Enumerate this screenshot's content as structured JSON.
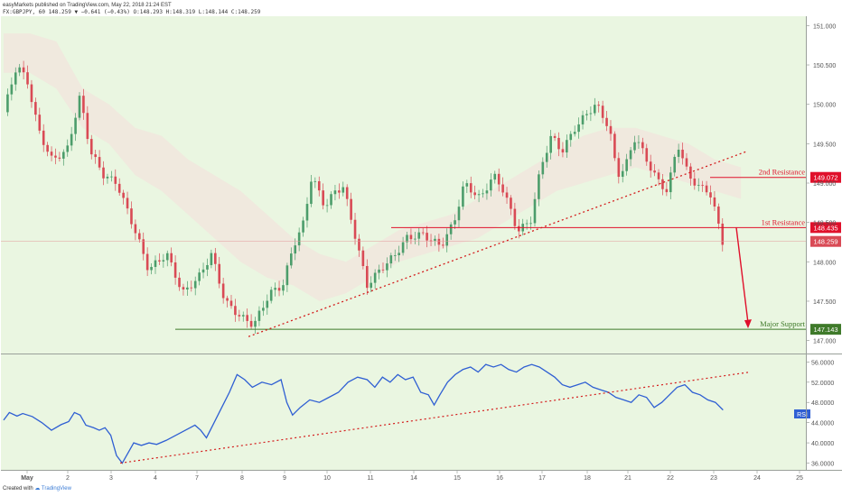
{
  "header": {
    "publisher_line": "easyMarkets published on TradingView.com, May 22, 2018 21:24 EST",
    "publisher_name": "easyMarkets",
    "symbol_line": "FX:GBPJPY, 60  148.259  ▼ −0.641 (−0.43%)  O:148.293  H:148.319  L:148.144  C:148.259"
  },
  "footer": {
    "created_with": "Created with",
    "brand": "TradingView"
  },
  "colors": {
    "background": "#eaf6e1",
    "up_candle": "#4c9d6b",
    "down_candle": "#d94a55",
    "resistance_line": "#e0102b",
    "support_line": "#3f7a2a",
    "rsi_line": "#2f5fd3",
    "trendline": "#d41d1d",
    "cloud": "#f2e4dc"
  },
  "chart_data": [
    {
      "type": "candlestick",
      "symbol": "FX:GBPJPY",
      "interval": "60",
      "last_price": 148.259,
      "x_tick_labels": [
        "May",
        "2",
        "3",
        "4",
        "7",
        "8",
        "9",
        "10",
        "11",
        "14",
        "15",
        "16",
        "17",
        "18",
        "21",
        "22",
        "23",
        "24",
        "25"
      ],
      "y_tick_labels": [
        "151.000",
        "150.500",
        "150.000",
        "149.500",
        "149.000",
        "148.500",
        "148.000",
        "147.500",
        "147.000"
      ],
      "ylim": [
        146.95,
        151.05
      ],
      "close_path": [
        [
          0,
          149.9
        ],
        [
          0.5,
          150.5
        ],
        [
          0.9,
          150.3
        ],
        [
          1.3,
          149.7
        ],
        [
          1.8,
          149.3
        ],
        [
          2.4,
          149.4
        ],
        [
          2.9,
          150.1
        ],
        [
          3.3,
          149.4
        ],
        [
          3.8,
          149.1
        ],
        [
          4.3,
          149.0
        ],
        [
          5.1,
          148.3
        ],
        [
          5.5,
          147.9
        ],
        [
          6.2,
          148.1
        ],
        [
          6.8,
          147.6
        ],
        [
          7.4,
          147.8
        ],
        [
          7.9,
          148.1
        ],
        [
          8.4,
          147.5
        ],
        [
          9.0,
          147.3
        ],
        [
          9.5,
          147.2
        ],
        [
          10.1,
          147.6
        ],
        [
          10.6,
          147.7
        ],
        [
          11.0,
          148.2
        ],
        [
          11.4,
          148.5
        ],
        [
          11.7,
          149.1
        ],
        [
          12.2,
          148.7
        ],
        [
          12.6,
          148.9
        ],
        [
          12.9,
          148.95
        ],
        [
          13.3,
          148.4
        ],
        [
          13.8,
          147.7
        ],
        [
          14.3,
          147.9
        ],
        [
          14.9,
          148.1
        ],
        [
          15.3,
          148.3
        ],
        [
          15.9,
          148.35
        ],
        [
          16.6,
          148.2
        ],
        [
          17.1,
          148.5
        ],
        [
          17.5,
          149.0
        ],
        [
          18.1,
          148.8
        ],
        [
          18.6,
          149.1
        ],
        [
          19.0,
          148.9
        ],
        [
          19.5,
          148.4
        ],
        [
          20.0,
          148.5
        ],
        [
          20.4,
          149.2
        ],
        [
          20.8,
          149.6
        ],
        [
          21.2,
          149.4
        ],
        [
          21.7,
          149.7
        ],
        [
          22.2,
          149.9
        ],
        [
          22.5,
          150.0
        ],
        [
          23.0,
          149.7
        ],
        [
          23.3,
          149.1
        ],
        [
          23.6,
          149.2
        ],
        [
          24.0,
          149.6
        ],
        [
          24.4,
          149.3
        ],
        [
          24.9,
          149.0
        ],
        [
          25.2,
          148.9
        ],
        [
          25.6,
          149.5
        ],
        [
          26.0,
          149.1
        ],
        [
          26.4,
          148.95
        ],
        [
          26.8,
          148.9
        ],
        [
          27.05,
          148.6
        ],
        [
          27.3,
          148.259
        ]
      ],
      "cloud_upper": [
        [
          0,
          150.9
        ],
        [
          1,
          150.9
        ],
        [
          2,
          150.8
        ],
        [
          3,
          150.2
        ],
        [
          4,
          150.0
        ],
        [
          5,
          149.7
        ],
        [
          6,
          149.6
        ],
        [
          7,
          149.3
        ],
        [
          8,
          149.1
        ],
        [
          9,
          148.9
        ],
        [
          10,
          148.6
        ],
        [
          11,
          148.3
        ],
        [
          12,
          148.1
        ],
        [
          13,
          148.0
        ],
        [
          14,
          148.2
        ],
        [
          15,
          148.4
        ],
        [
          16,
          148.5
        ],
        [
          17,
          148.6
        ],
        [
          18,
          148.8
        ],
        [
          19,
          149.0
        ],
        [
          20,
          149.2
        ],
        [
          21,
          149.4
        ],
        [
          22,
          149.6
        ],
        [
          23,
          149.7
        ],
        [
          24,
          149.7
        ],
        [
          25,
          149.6
        ],
        [
          26,
          149.5
        ],
        [
          27,
          149.3
        ],
        [
          28,
          149.2
        ]
      ],
      "cloud_lower": [
        [
          0,
          150.4
        ],
        [
          1,
          150.4
        ],
        [
          2,
          150.2
        ],
        [
          3,
          149.7
        ],
        [
          4,
          149.5
        ],
        [
          5,
          149.1
        ],
        [
          6,
          148.9
        ],
        [
          7,
          148.6
        ],
        [
          8,
          148.3
        ],
        [
          9,
          148.0
        ],
        [
          10,
          147.8
        ],
        [
          11,
          147.7
        ],
        [
          12,
          147.5
        ],
        [
          13,
          147.6
        ],
        [
          14,
          147.8
        ],
        [
          15,
          148.0
        ],
        [
          16,
          148.1
        ],
        [
          17,
          148.2
        ],
        [
          18,
          148.3
        ],
        [
          19,
          148.5
        ],
        [
          20,
          148.7
        ],
        [
          21,
          148.9
        ],
        [
          22,
          149.0
        ],
        [
          23,
          149.1
        ],
        [
          24,
          149.2
        ],
        [
          25,
          149.1
        ],
        [
          26,
          149.0
        ],
        [
          27,
          148.9
        ],
        [
          28,
          148.8
        ]
      ],
      "levels": [
        {
          "label": "2nd Resistance",
          "value": 149.072,
          "value_label": "149.072",
          "role": "resistance"
        },
        {
          "label": "1st Resistance",
          "value": 148.435,
          "value_label": "148.435",
          "role": "resistance"
        },
        {
          "label": "Major Support",
          "value": 147.143,
          "value_label": "147.143",
          "role": "support"
        }
      ],
      "price_marker": {
        "value": 148.259,
        "value_label": "148.259"
      },
      "trendline": [
        [
          9.3,
          147.05
        ],
        [
          28.2,
          149.4
        ]
      ],
      "projection_arrow": {
        "from": [
          27.7,
          148.435
        ],
        "to": [
          28.5,
          147.143
        ]
      },
      "grid": false
    },
    {
      "type": "line",
      "name": "RSI",
      "y_tick_labels": [
        "56.0000",
        "52.0000",
        "48.0000",
        "44.0000",
        "40.0000",
        "36.0000"
      ],
      "ylim": [
        35.2,
        56.6
      ],
      "legend": "RSI",
      "values": [
        [
          0,
          44.5
        ],
        [
          0.3,
          46.0
        ],
        [
          0.7,
          45.3
        ],
        [
          1.0,
          45.8
        ],
        [
          1.5,
          45.2
        ],
        [
          2.0,
          44.0
        ],
        [
          2.5,
          42.5
        ],
        [
          3.0,
          43.6
        ],
        [
          3.4,
          44.2
        ],
        [
          3.7,
          46.0
        ],
        [
          4.0,
          45.5
        ],
        [
          4.3,
          43.5
        ],
        [
          4.7,
          43.0
        ],
        [
          5.0,
          42.5
        ],
        [
          5.3,
          43.0
        ],
        [
          5.6,
          41.5
        ],
        [
          5.9,
          37.5
        ],
        [
          6.2,
          36.0
        ],
        [
          6.5,
          38.0
        ],
        [
          6.8,
          40.0
        ],
        [
          7.2,
          39.5
        ],
        [
          7.6,
          40.0
        ],
        [
          8.0,
          39.7
        ],
        [
          8.5,
          40.5
        ],
        [
          9.0,
          41.5
        ],
        [
          9.5,
          42.5
        ],
        [
          10.0,
          43.5
        ],
        [
          10.3,
          42.5
        ],
        [
          10.6,
          41.0
        ],
        [
          11.0,
          44.0
        ],
        [
          11.4,
          47.0
        ],
        [
          11.8,
          50.0
        ],
        [
          12.2,
          53.5
        ],
        [
          12.6,
          52.5
        ],
        [
          13.0,
          51.0
        ],
        [
          13.5,
          52.0
        ],
        [
          14.0,
          51.5
        ],
        [
          14.5,
          52.5
        ],
        [
          14.8,
          48.0
        ],
        [
          15.1,
          45.5
        ],
        [
          15.5,
          47.0
        ],
        [
          16.0,
          48.5
        ],
        [
          16.5,
          48.0
        ],
        [
          17.0,
          49.0
        ],
        [
          17.5,
          50.0
        ],
        [
          18.0,
          52.0
        ],
        [
          18.5,
          53.0
        ],
        [
          19.0,
          52.5
        ],
        [
          19.4,
          51.0
        ],
        [
          19.8,
          53.0
        ],
        [
          20.2,
          52.0
        ],
        [
          20.6,
          53.5
        ],
        [
          21.0,
          52.5
        ],
        [
          21.4,
          53.0
        ],
        [
          21.8,
          50.0
        ],
        [
          22.2,
          49.5
        ],
        [
          22.5,
          47.5
        ],
        [
          22.8,
          49.5
        ],
        [
          23.2,
          52.0
        ],
        [
          23.6,
          53.5
        ],
        [
          24.0,
          54.5
        ],
        [
          24.4,
          55.0
        ],
        [
          24.8,
          54.0
        ],
        [
          25.2,
          55.5
        ],
        [
          25.6,
          55.0
        ],
        [
          26.0,
          55.5
        ],
        [
          26.4,
          54.5
        ],
        [
          26.8,
          54.0
        ],
        [
          27.2,
          55.0
        ],
        [
          27.6,
          55.5
        ],
        [
          28.0,
          55.0
        ],
        [
          28.4,
          54.0
        ],
        [
          28.8,
          53.0
        ],
        [
          29.2,
          51.5
        ],
        [
          29.6,
          51.0
        ],
        [
          30.0,
          51.5
        ],
        [
          30.4,
          52.0
        ],
        [
          30.8,
          51.0
        ],
        [
          31.2,
          50.5
        ],
        [
          31.6,
          50.0
        ],
        [
          32.0,
          49.0
        ],
        [
          32.4,
          48.5
        ],
        [
          32.8,
          48.0
        ],
        [
          33.2,
          49.5
        ],
        [
          33.6,
          49.0
        ],
        [
          34.0,
          47.0
        ],
        [
          34.4,
          48.0
        ],
        [
          34.8,
          49.5
        ],
        [
          35.2,
          51.0
        ],
        [
          35.6,
          51.5
        ],
        [
          36.0,
          50.0
        ],
        [
          36.4,
          49.5
        ],
        [
          36.8,
          48.5
        ],
        [
          37.2,
          48.0
        ],
        [
          37.6,
          46.5
        ]
      ],
      "trendline": [
        [
          6.1,
          36.0
        ],
        [
          39.0,
          54.0
        ]
      ],
      "grid": false
    }
  ]
}
